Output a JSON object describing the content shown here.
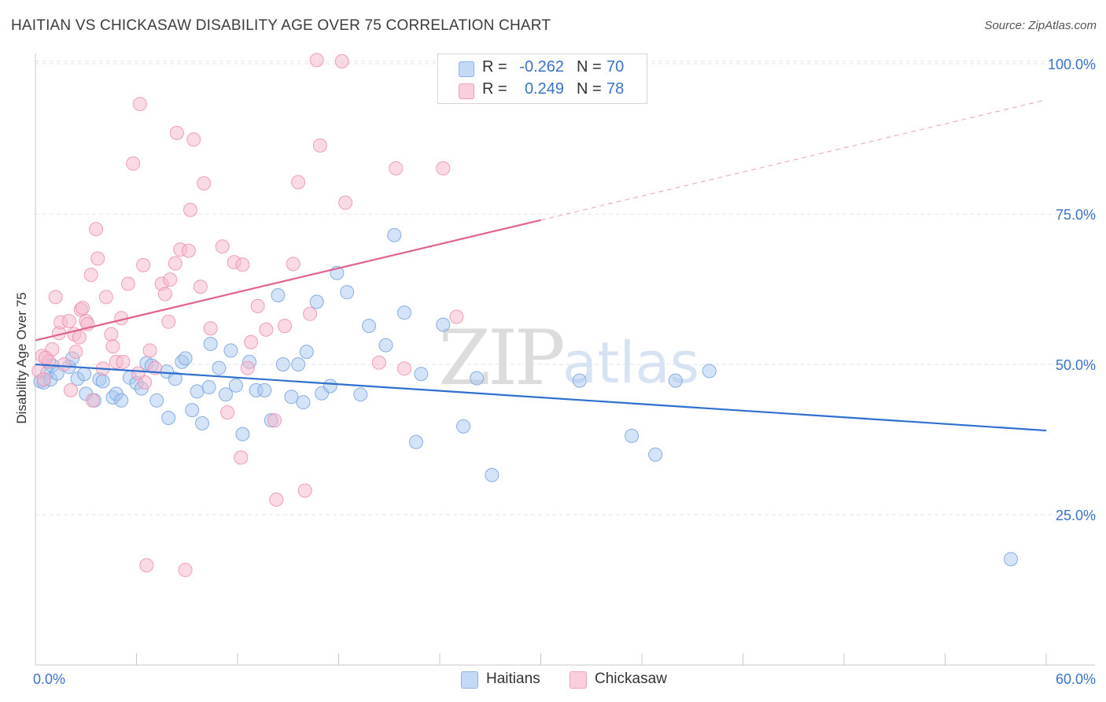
{
  "header": {
    "title": "HAITIAN VS CHICKASAW DISABILITY AGE OVER 75 CORRELATION CHART",
    "source": "Source: ZipAtlas.com"
  },
  "watermark": {
    "zip": "ZIP",
    "atlas": "atlas"
  },
  "legend": {
    "rows": [
      {
        "r_label": "R =",
        "r_value": "-0.262",
        "n_label": "N =",
        "n_value": "70",
        "color": "#aac8f0"
      },
      {
        "r_label": "R =",
        "r_value": "0.249",
        "n_label": "N =",
        "n_value": "78",
        "color": "#f6b8cc"
      }
    ]
  },
  "bottom_legend": {
    "haitians": "Haitians",
    "chickasaw": "Chickasaw"
  },
  "chart_data": {
    "type": "scatter",
    "title": "HAITIAN VS CHICKASAW DISABILITY AGE OVER 75 CORRELATION CHART",
    "xlabel": "",
    "ylabel": "Disability Age Over 75",
    "xlim": [
      0,
      60
    ],
    "ylim": [
      0,
      105
    ],
    "x_tick_labels": [
      "0.0%",
      "60.0%"
    ],
    "y_tick_labels": [
      "25.0%",
      "50.0%",
      "75.0%",
      "100.0%"
    ],
    "y_ticks": [
      25,
      50,
      75,
      100
    ],
    "grid": true,
    "legend_position": "top-center",
    "colors": {
      "haitians_fill": "#aac8f0",
      "haitians_stroke": "#6f9fdc",
      "haitians_line": "#2f6fcf",
      "chickasaw_fill": "#f6b8cc",
      "chickasaw_stroke": "#ec8aab",
      "chickasaw_line": "#e0628e",
      "tick_label": "#3a73c9",
      "grid": "#e3e3e3"
    },
    "series": [
      {
        "name": "Haitians",
        "trend": {
          "x": [
            0,
            60
          ],
          "y": [
            50.0,
            39.0
          ],
          "dashed_from": null
        },
        "points": [
          [
            0.3,
            47.2
          ],
          [
            0.5,
            47.0
          ],
          [
            0.7,
            48.6
          ],
          [
            0.9,
            47.5
          ],
          [
            1.0,
            49.8
          ],
          [
            1.3,
            48.5
          ],
          [
            2.0,
            49.6
          ],
          [
            2.2,
            51.0
          ],
          [
            2.5,
            47.6
          ],
          [
            2.9,
            48.4
          ],
          [
            3.0,
            45.1
          ],
          [
            3.5,
            44.0
          ],
          [
            3.8,
            47.5
          ],
          [
            4.0,
            47.2
          ],
          [
            4.6,
            44.5
          ],
          [
            4.8,
            45.1
          ],
          [
            5.1,
            44.0
          ],
          [
            5.6,
            47.8
          ],
          [
            6.0,
            46.9
          ],
          [
            6.3,
            46.0
          ],
          [
            6.6,
            50.2
          ],
          [
            6.9,
            49.8
          ],
          [
            7.2,
            44.0
          ],
          [
            7.8,
            48.8
          ],
          [
            7.9,
            41.1
          ],
          [
            8.3,
            47.6
          ],
          [
            8.7,
            50.4
          ],
          [
            8.9,
            51.0
          ],
          [
            9.3,
            42.4
          ],
          [
            9.6,
            45.5
          ],
          [
            9.9,
            40.2
          ],
          [
            10.3,
            46.2
          ],
          [
            10.4,
            53.4
          ],
          [
            10.9,
            49.4
          ],
          [
            11.3,
            45.0
          ],
          [
            11.6,
            52.3
          ],
          [
            11.9,
            46.5
          ],
          [
            12.3,
            38.4
          ],
          [
            12.7,
            50.4
          ],
          [
            13.1,
            45.7
          ],
          [
            13.6,
            45.7
          ],
          [
            14.0,
            40.7
          ],
          [
            14.4,
            61.5
          ],
          [
            14.7,
            50.0
          ],
          [
            15.2,
            44.6
          ],
          [
            15.6,
            50.0
          ],
          [
            15.9,
            43.7
          ],
          [
            16.1,
            52.1
          ],
          [
            16.7,
            60.4
          ],
          [
            17.0,
            45.2
          ],
          [
            17.5,
            46.4
          ],
          [
            17.9,
            65.2
          ],
          [
            18.5,
            62.0
          ],
          [
            19.3,
            45.0
          ],
          [
            19.8,
            56.4
          ],
          [
            20.8,
            53.2
          ],
          [
            21.3,
            71.5
          ],
          [
            21.9,
            58.6
          ],
          [
            22.6,
            37.1
          ],
          [
            22.9,
            48.4
          ],
          [
            24.2,
            56.6
          ],
          [
            25.4,
            39.7
          ],
          [
            26.2,
            47.7
          ],
          [
            27.1,
            31.6
          ],
          [
            32.3,
            47.3
          ],
          [
            35.4,
            38.1
          ],
          [
            36.8,
            35.0
          ],
          [
            38.0,
            47.3
          ],
          [
            40.0,
            48.9
          ],
          [
            57.9,
            17.6
          ]
        ]
      },
      {
        "name": "Chickasaw",
        "trend": {
          "x": [
            0,
            30
          ],
          "y": [
            54.0,
            74.0
          ],
          "dashed_from": 30,
          "dashed_to": {
            "x": 60,
            "y": 94.0
          }
        },
        "points": [
          [
            0.2,
            48.9
          ],
          [
            0.4,
            51.4
          ],
          [
            0.5,
            47.5
          ],
          [
            0.8,
            50.5
          ],
          [
            1.0,
            52.5
          ],
          [
            1.2,
            61.2
          ],
          [
            1.4,
            55.2
          ],
          [
            1.5,
            57.0
          ],
          [
            1.7,
            50.0
          ],
          [
            2.0,
            57.2
          ],
          [
            2.1,
            45.7
          ],
          [
            2.3,
            55.0
          ],
          [
            2.4,
            52.1
          ],
          [
            2.6,
            54.5
          ],
          [
            2.7,
            59.1
          ],
          [
            2.8,
            59.4
          ],
          [
            3.0,
            57.2
          ],
          [
            3.1,
            56.7
          ],
          [
            3.3,
            64.9
          ],
          [
            3.4,
            44.0
          ],
          [
            3.6,
            72.5
          ],
          [
            3.7,
            67.6
          ],
          [
            4.0,
            49.3
          ],
          [
            4.2,
            61.2
          ],
          [
            4.5,
            55.0
          ],
          [
            4.6,
            53.0
          ],
          [
            4.8,
            50.4
          ],
          [
            5.1,
            57.7
          ],
          [
            5.2,
            50.4
          ],
          [
            5.5,
            63.4
          ],
          [
            5.8,
            83.4
          ],
          [
            6.1,
            48.5
          ],
          [
            6.2,
            93.3
          ],
          [
            6.4,
            66.5
          ],
          [
            6.6,
            16.6
          ],
          [
            6.8,
            52.3
          ],
          [
            7.1,
            49.4
          ],
          [
            7.5,
            63.4
          ],
          [
            7.7,
            61.7
          ],
          [
            7.9,
            57.1
          ],
          [
            8.0,
            64.1
          ],
          [
            8.3,
            66.8
          ],
          [
            8.4,
            88.5
          ],
          [
            8.6,
            69.1
          ],
          [
            8.9,
            15.8
          ],
          [
            9.1,
            68.9
          ],
          [
            9.2,
            75.7
          ],
          [
            9.4,
            87.4
          ],
          [
            9.8,
            62.9
          ],
          [
            10.0,
            80.1
          ],
          [
            10.4,
            56.0
          ],
          [
            11.1,
            69.6
          ],
          [
            11.4,
            42.0
          ],
          [
            11.8,
            67.0
          ],
          [
            12.2,
            34.5
          ],
          [
            12.3,
            66.6
          ],
          [
            12.6,
            49.4
          ],
          [
            12.8,
            53.7
          ],
          [
            13.2,
            59.7
          ],
          [
            13.7,
            55.8
          ],
          [
            14.2,
            40.7
          ],
          [
            14.3,
            27.5
          ],
          [
            14.8,
            56.4
          ],
          [
            15.3,
            66.7
          ],
          [
            15.6,
            80.3
          ],
          [
            16.0,
            29.0
          ],
          [
            16.3,
            58.4
          ],
          [
            16.7,
            100.6
          ],
          [
            16.9,
            86.4
          ],
          [
            18.2,
            100.4
          ],
          [
            18.4,
            76.9
          ],
          [
            20.4,
            50.3
          ],
          [
            21.4,
            82.6
          ],
          [
            21.9,
            49.3
          ],
          [
            24.2,
            82.6
          ],
          [
            25.0,
            57.9
          ],
          [
            6.5,
            47.0
          ],
          [
            0.6,
            51.1
          ]
        ]
      }
    ]
  }
}
